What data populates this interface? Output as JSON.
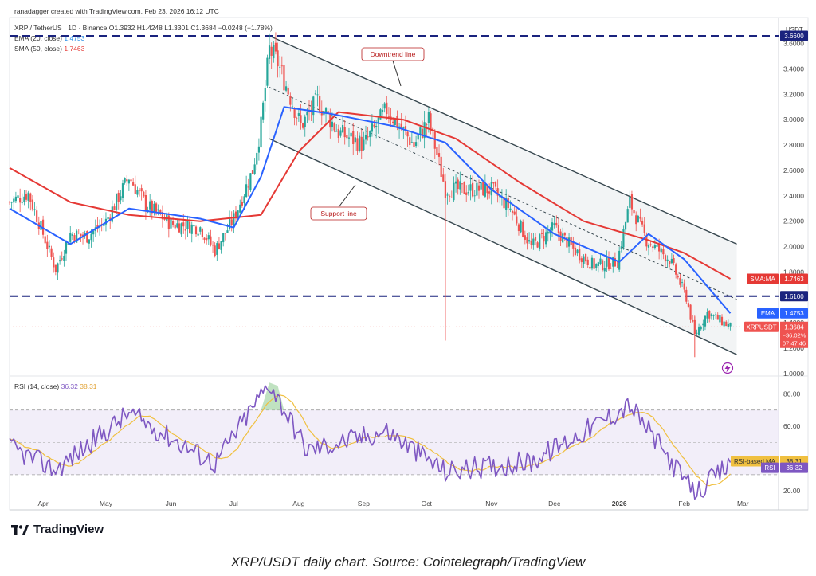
{
  "header": {
    "created_by": "ranadagger created with TradingView.com, Feb 23, 2026 16:12 UTC",
    "symbol_line": "XRP / TetherUS · 1D · Binance",
    "ohlc": "O1.3932 H1.4248 L1.3301 C1.3684 −0.0248 (−1.78%)",
    "ema_label": "EMA (20, close)",
    "ema_value": "1.4753",
    "sma_label": "SMA (50, close)",
    "sma_value": "1.7463",
    "rsi_label": "RSI (14, close)",
    "rsi_value": "36.32",
    "rsi_ma_value": "38.31",
    "currency": "USDT"
  },
  "annotations": {
    "downtrend": "Downtrend line",
    "support": "Support line"
  },
  "price_tags": {
    "resistance_top": "3.6600",
    "level_mid": "1.6100",
    "sma_tag": "SMA:MA",
    "sma_val": "1.7463",
    "ema_tag": "EMA",
    "ema_val": "1.4753",
    "price_tag": "XRPUSDT",
    "price_val": "1.3684",
    "price_pct": "−36.02%",
    "price_time": "07:47:46"
  },
  "rsi_tags": {
    "ma_tag": "RSI-based MA",
    "ma_val": "38.31",
    "rsi_tag": "RSI",
    "rsi_val": "36.32"
  },
  "brand": "TradingView",
  "caption": "XRP/USDT daily chart. Source: Cointelegraph/TradingView",
  "colors": {
    "up": "#26a69a",
    "down": "#ef5350",
    "ema": "#2962ff",
    "sma": "#e53935",
    "rsi": "#7e57c2",
    "rsi_ma": "#f0c040",
    "level": "#1a237e",
    "channel": "#37474f"
  },
  "chart_data": {
    "type": "candlestick",
    "title": "XRP / TetherUS · 1D · Binance",
    "y_price_ticks": [
      "3.6000",
      "3.4000",
      "3.2000",
      "3.0000",
      "2.8000",
      "2.6000",
      "2.4000",
      "2.2000",
      "2.0000",
      "1.8000",
      "1.4000",
      "1.2000",
      "1.0000"
    ],
    "y_rsi_ticks": [
      "80.00",
      "60.00",
      "20.00"
    ],
    "x_ticks": [
      "Apr",
      "May",
      "Jun",
      "Jul",
      "Aug",
      "Sep",
      "Oct",
      "Nov",
      "Dec",
      "2026",
      "Feb",
      "Mar"
    ],
    "horizontal_levels": [
      3.66,
      1.61
    ],
    "last_price": 1.3684,
    "close_path": [
      {
        "date": "2025-03-16",
        "close": 2.35
      },
      {
        "date": "2025-03-25",
        "close": 2.42
      },
      {
        "date": "2025-04-01",
        "close": 2.1
      },
      {
        "date": "2025-04-07",
        "close": 1.82
      },
      {
        "date": "2025-04-14",
        "close": 2.1
      },
      {
        "date": "2025-04-22",
        "close": 2.08
      },
      {
        "date": "2025-05-01",
        "close": 2.2
      },
      {
        "date": "2025-05-12",
        "close": 2.55
      },
      {
        "date": "2025-05-20",
        "close": 2.33
      },
      {
        "date": "2025-06-01",
        "close": 2.18
      },
      {
        "date": "2025-06-15",
        "close": 2.15
      },
      {
        "date": "2025-06-22",
        "close": 1.97
      },
      {
        "date": "2025-07-01",
        "close": 2.22
      },
      {
        "date": "2025-07-10",
        "close": 2.6
      },
      {
        "date": "2025-07-14",
        "close": 2.95
      },
      {
        "date": "2025-07-18",
        "close": 3.55
      },
      {
        "date": "2025-07-22",
        "close": 3.45
      },
      {
        "date": "2025-08-02",
        "close": 2.95
      },
      {
        "date": "2025-08-10",
        "close": 3.15
      },
      {
        "date": "2025-08-20",
        "close": 2.9
      },
      {
        "date": "2025-09-01",
        "close": 2.8
      },
      {
        "date": "2025-09-12",
        "close": 3.08
      },
      {
        "date": "2025-09-25",
        "close": 2.8
      },
      {
        "date": "2025-10-02",
        "close": 3.0
      },
      {
        "date": "2025-10-10",
        "close": 2.45
      },
      {
        "date": "2025-10-20",
        "close": 2.45
      },
      {
        "date": "2025-11-01",
        "close": 2.45
      },
      {
        "date": "2025-11-10",
        "close": 2.3
      },
      {
        "date": "2025-11-20",
        "close": 2.0
      },
      {
        "date": "2025-12-01",
        "close": 2.15
      },
      {
        "date": "2025-12-10",
        "close": 1.98
      },
      {
        "date": "2025-12-20",
        "close": 1.85
      },
      {
        "date": "2025-12-31",
        "close": 1.88
      },
      {
        "date": "2026-01-06",
        "close": 2.35
      },
      {
        "date": "2026-01-14",
        "close": 2.05
      },
      {
        "date": "2026-01-25",
        "close": 1.9
      },
      {
        "date": "2026-02-02",
        "close": 1.6
      },
      {
        "date": "2026-02-06",
        "close": 1.3
      },
      {
        "date": "2026-02-12",
        "close": 1.48
      },
      {
        "date": "2026-02-23",
        "close": 1.37
      }
    ],
    "ema20": [
      {
        "date": "2025-03-16",
        "value": 2.3
      },
      {
        "date": "2025-04-14",
        "value": 2.02
      },
      {
        "date": "2025-05-12",
        "value": 2.3
      },
      {
        "date": "2025-06-15",
        "value": 2.22
      },
      {
        "date": "2025-07-01",
        "value": 2.15
      },
      {
        "date": "2025-07-14",
        "value": 2.55
      },
      {
        "date": "2025-07-25",
        "value": 3.1
      },
      {
        "date": "2025-08-15",
        "value": 3.05
      },
      {
        "date": "2025-09-15",
        "value": 2.95
      },
      {
        "date": "2025-10-10",
        "value": 2.82
      },
      {
        "date": "2025-11-01",
        "value": 2.45
      },
      {
        "date": "2025-12-01",
        "value": 2.1
      },
      {
        "date": "2026-01-01",
        "value": 1.88
      },
      {
        "date": "2026-01-15",
        "value": 2.1
      },
      {
        "date": "2026-02-01",
        "value": 1.9
      },
      {
        "date": "2026-02-23",
        "value": 1.4753
      }
    ],
    "sma50": [
      {
        "date": "2025-03-16",
        "value": 2.62
      },
      {
        "date": "2025-04-14",
        "value": 2.35
      },
      {
        "date": "2025-05-12",
        "value": 2.25
      },
      {
        "date": "2025-06-15",
        "value": 2.2
      },
      {
        "date": "2025-07-14",
        "value": 2.25
      },
      {
        "date": "2025-08-01",
        "value": 2.75
      },
      {
        "date": "2025-08-20",
        "value": 3.06
      },
      {
        "date": "2025-09-20",
        "value": 3.0
      },
      {
        "date": "2025-10-15",
        "value": 2.85
      },
      {
        "date": "2025-11-15",
        "value": 2.5
      },
      {
        "date": "2025-12-15",
        "value": 2.2
      },
      {
        "date": "2026-01-15",
        "value": 2.05
      },
      {
        "date": "2026-02-01",
        "value": 1.95
      },
      {
        "date": "2026-02-23",
        "value": 1.7463
      }
    ],
    "rsi14": [
      {
        "date": "2025-03-16",
        "value": 47
      },
      {
        "date": "2025-04-07",
        "value": 33
      },
      {
        "date": "2025-05-12",
        "value": 68
      },
      {
        "date": "2025-06-22",
        "value": 37
      },
      {
        "date": "2025-07-18",
        "value": 87
      },
      {
        "date": "2025-08-05",
        "value": 45
      },
      {
        "date": "2025-09-12",
        "value": 57
      },
      {
        "date": "2025-10-10",
        "value": 32
      },
      {
        "date": "2025-11-20",
        "value": 38
      },
      {
        "date": "2026-01-06",
        "value": 73
      },
      {
        "date": "2026-02-06",
        "value": 18
      },
      {
        "date": "2026-02-23",
        "value": 36.32
      }
    ],
    "channel": {
      "upper": [
        {
          "date": "2025-07-18",
          "price": 3.66
        },
        {
          "date": "2026-02-23",
          "price": 2.02
        }
      ],
      "lower": [
        {
          "date": "2025-07-18",
          "price": 2.85
        },
        {
          "date": "2026-02-23",
          "price": 1.15
        }
      ]
    }
  }
}
